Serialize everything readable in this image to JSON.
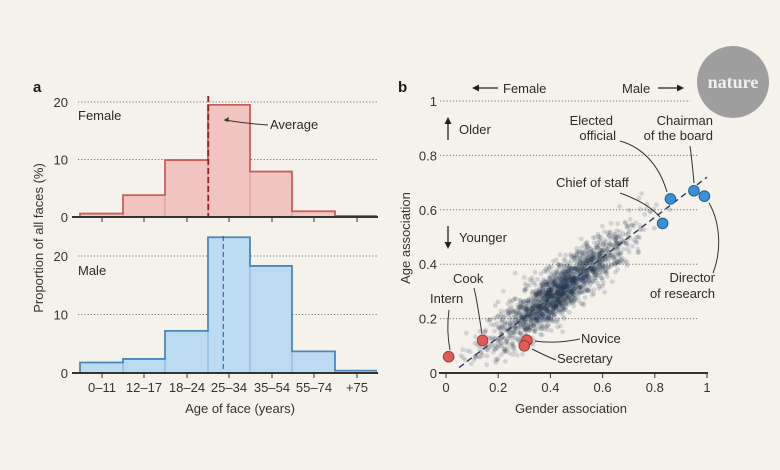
{
  "brand": {
    "logo_text": "nature",
    "logo_color": "#9e9e9e"
  },
  "chart_data": [
    {
      "panel": "a",
      "type": "bar",
      "subtype": "histogram-step",
      "xlabel": "Age of face (years)",
      "ylabel": "Proportion of all faces (%)",
      "categories": [
        "0–11",
        "12–17",
        "18–24",
        "25–34",
        "35–54",
        "55–74",
        "+75"
      ],
      "series": [
        {
          "name": "Female",
          "values": [
            0.6,
            3.8,
            9.9,
            19.5,
            7.9,
            1.0,
            0.2
          ],
          "ylim": [
            0,
            20
          ],
          "yticks": [
            0,
            10,
            20
          ],
          "average_label": "Average",
          "average_position_category_index": 2.75,
          "fill": "#f2c4c0",
          "stroke": "#c95f5b",
          "average_color": "#9b1b22"
        },
        {
          "name": "Male",
          "values": [
            1.8,
            2.4,
            7.2,
            23.2,
            18.3,
            3.7,
            0.4
          ],
          "ylim": [
            0,
            24
          ],
          "yticks": [
            0,
            10,
            20
          ],
          "average_position_category_index": 3.1,
          "fill": "#bcdaf0",
          "stroke": "#4a87bb",
          "average_color": "#2d6ca4"
        }
      ],
      "grid": true
    },
    {
      "panel": "b",
      "type": "scatter",
      "xlabel": "Gender association",
      "ylabel": "Age association",
      "xlim": [
        0,
        1
      ],
      "ylim": [
        0,
        1
      ],
      "xticks": [
        0,
        0.2,
        0.4,
        0.6,
        0.8,
        1
      ],
      "xtick_labels": [
        "0",
        "0.2",
        "0.4",
        "0.6",
        "0.8",
        "1"
      ],
      "yticks": [
        0,
        0.2,
        0.4,
        0.6,
        0.8,
        1
      ],
      "ytick_labels": [
        "0",
        "0.2",
        "0.4",
        "0.6",
        "0.8",
        "1"
      ],
      "grid": true,
      "direction_labels": {
        "left": "Female",
        "right": "Male",
        "up": "Older",
        "down": "Younger"
      },
      "fit_line": {
        "x": [
          0.05,
          1.0
        ],
        "y": [
          0.02,
          0.72
        ]
      },
      "cloud": {
        "center_x": 0.43,
        "center_y": 0.3,
        "slope": 0.72,
        "count": 1800,
        "color": "#1c2f4d"
      },
      "highlighted": [
        {
          "label": "Intern",
          "x": 0.01,
          "y": 0.06,
          "group": "female"
        },
        {
          "label": "Cook",
          "x": 0.14,
          "y": 0.12,
          "group": "female"
        },
        {
          "label": "Novice",
          "x": 0.31,
          "y": 0.12,
          "group": "female"
        },
        {
          "label": "Secretary",
          "x": 0.3,
          "y": 0.1,
          "group": "female"
        },
        {
          "label": "Chief of staff",
          "x": 0.83,
          "y": 0.55,
          "group": "male"
        },
        {
          "label": "Elected official",
          "x": 0.86,
          "y": 0.64,
          "group": "male"
        },
        {
          "label": "Chairman of the board",
          "x": 0.95,
          "y": 0.67,
          "group": "male"
        },
        {
          "label": "Director of research",
          "x": 0.99,
          "y": 0.65,
          "group": "male"
        }
      ],
      "colors": {
        "female": "#e05a56",
        "male": "#3a8fd6"
      }
    }
  ],
  "labels": {
    "panel_a": "a",
    "panel_b": "b",
    "female_hist": "Female",
    "male_hist": "Male",
    "average": "Average",
    "ylabel_a": "Proportion of all faces (%)",
    "xlabel_a": "Age of face (years)",
    "xlabel_b": "Gender association",
    "ylabel_b": "Age association",
    "arrow_female": "Female",
    "arrow_male": "Male",
    "older": "Older",
    "younger": "Younger",
    "intern": "Intern",
    "cook": "Cook",
    "novice": "Novice",
    "secretary": "Secretary",
    "chief": "Chief of staff",
    "elected_1": "Elected",
    "elected_2": "official",
    "chairman_1": "Chairman",
    "chairman_2": "of the board",
    "director_1": "Director",
    "director_2": "of research"
  }
}
